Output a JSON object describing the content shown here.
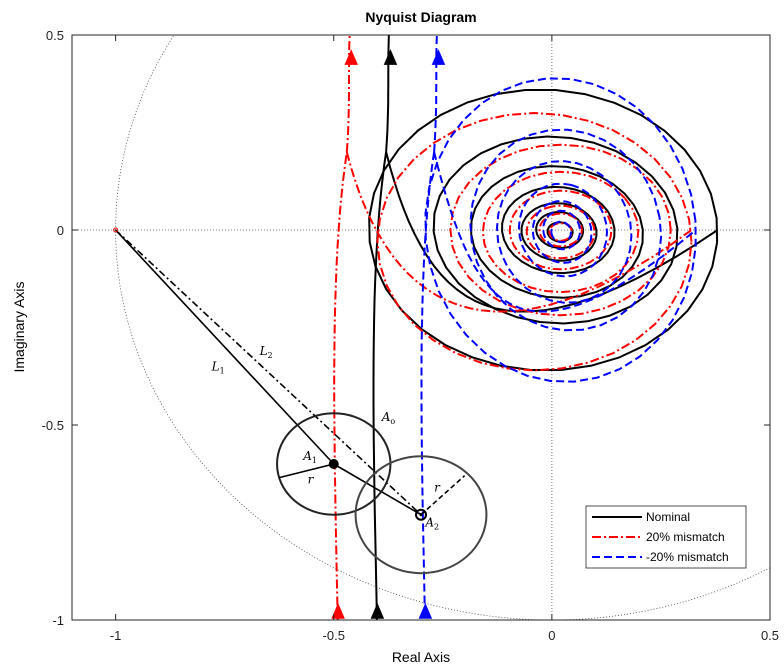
{
  "chart_data": {
    "type": "line",
    "title": "Nyquist Diagram",
    "xlabel": "Real Axis",
    "ylabel": "Imaginary Axis",
    "xlim": [
      -1.1,
      0.5
    ],
    "ylim": [
      -1,
      0.5
    ],
    "xticks": [
      -1,
      -0.5,
      0,
      0.5
    ],
    "xtick_labels": [
      "-1",
      "-0.5",
      "0",
      "0.5"
    ],
    "yticks": [
      0.5,
      0,
      -0.5,
      -1
    ],
    "ytick_labels": [
      "0.5",
      "0",
      "-0.5",
      "-1"
    ],
    "grid": false,
    "legend_position": "bottom-right",
    "series": [
      {
        "name": "Nominal",
        "color": "#000000",
        "style": "solid",
        "vertical_branch_x": -0.41,
        "outer_loop": {
          "center": [
            -0.02,
            0
          ],
          "rx": 0.4,
          "ry": 0.36
        }
      },
      {
        "name": "20% mismatch",
        "color": "#ff0000",
        "style": "dash-dot",
        "vertical_branch_x": -0.5,
        "outer_loop": {
          "center": [
            -0.04,
            -0.03
          ],
          "rx": 0.36,
          "ry": 0.33
        }
      },
      {
        "name": "-20% mismatch",
        "color": "#0000ff",
        "style": "dashed",
        "vertical_branch_x": -0.3,
        "outer_loop": {
          "center": [
            0.02,
            0
          ],
          "rx": 0.31,
          "ry": 0.39
        }
      }
    ],
    "critical_point": [
      -1,
      0
    ],
    "points": [
      {
        "label": "A_1",
        "x": -0.5,
        "y": -0.6
      },
      {
        "label": "A_2",
        "x": -0.3,
        "y": -0.73
      }
    ],
    "circles": [
      {
        "center_label": "A_1",
        "radius": 0.13
      },
      {
        "center_label": "A_2",
        "radius": 0.15
      }
    ],
    "annotations": [
      {
        "text": "L",
        "sub": "1"
      },
      {
        "text": "L",
        "sub": "2"
      },
      {
        "text": "A",
        "sub": "o"
      },
      {
        "text": "A",
        "sub": "1"
      },
      {
        "text": "A",
        "sub": "2"
      },
      {
        "text": "r",
        "sub": ""
      },
      {
        "text": "r",
        "sub": ""
      }
    ]
  }
}
